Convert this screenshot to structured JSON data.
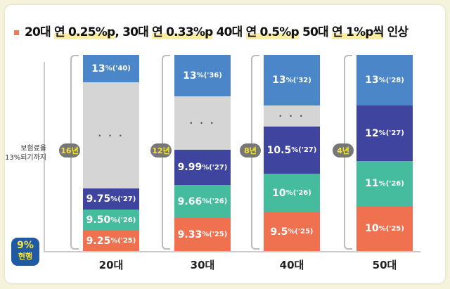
{
  "title": {
    "prefix": "20대 ",
    "h1": "연 0.25%p",
    "m1": ", 30대 ",
    "h2": "연 0.33%p",
    "m2": " 40대 ",
    "h3": "연 0.5%p",
    "m3": " 50대 ",
    "h4": "연 1%p씩",
    "suffix": " 인상"
  },
  "colors": {
    "blue": "#4a86c8",
    "gray": "#d5d5d5",
    "purple": "#3f449e",
    "teal": "#46bc9f",
    "orange": "#ef7150"
  },
  "y_note": {
    "line1": "보험료율",
    "line2": "13%되기까지"
  },
  "current": {
    "value": "9%",
    "label": "현행"
  },
  "chart_data": {
    "type": "bar",
    "stacked": true,
    "title": "20대 연 0.25%p, 30대 연 0.33%p 40대 연 0.5%p 50대 연 1%p씩 인상",
    "categories": [
      "20대",
      "30대",
      "40대",
      "50대"
    ],
    "years_to_13": [
      "16년",
      "12년",
      "8년",
      "4년"
    ],
    "groups": [
      {
        "segments": [
          {
            "color": "orange",
            "value": "9.25",
            "year": "('25)"
          },
          {
            "color": "teal",
            "value": "9.50",
            "year": "('26)"
          },
          {
            "color": "purple",
            "value": "9.75",
            "year": "('27)"
          },
          {
            "color": "gray",
            "value": "· · ·",
            "year": ""
          },
          {
            "color": "blue",
            "value": "13",
            "year": "('40)"
          }
        ],
        "weights": [
          29,
          30,
          30,
          151,
          39
        ]
      },
      {
        "segments": [
          {
            "color": "orange",
            "value": "9.33",
            "year": "('25)"
          },
          {
            "color": "teal",
            "value": "9.66",
            "year": "('26)"
          },
          {
            "color": "purple",
            "value": "9.99",
            "year": "('27)"
          },
          {
            "color": "gray",
            "value": "· · ·",
            "year": ""
          },
          {
            "color": "blue",
            "value": "13",
            "year": "('36)"
          }
        ],
        "weights": [
          47,
          47,
          50,
          76,
          59
        ]
      },
      {
        "segments": [
          {
            "color": "orange",
            "value": "9.5",
            "year": "('25)"
          },
          {
            "color": "teal",
            "value": "10",
            "year": "('26)"
          },
          {
            "color": "purple",
            "value": "10.5",
            "year": "('27)"
          },
          {
            "color": "gray",
            "value": "· · ·",
            "year": ""
          },
          {
            "color": "blue",
            "value": "13",
            "year": "('32)"
          }
        ],
        "weights": [
          55,
          55,
          67,
          30,
          72
        ]
      },
      {
        "segments": [
          {
            "color": "orange",
            "value": "10",
            "year": "('25)"
          },
          {
            "color": "teal",
            "value": "11",
            "year": "('26)"
          },
          {
            "color": "purple",
            "value": "12",
            "year": "('27)"
          },
          {
            "color": "blue",
            "value": "13",
            "year": "('28)"
          }
        ],
        "weights": [
          64,
          64,
          79,
          72
        ]
      }
    ],
    "unit": "%"
  }
}
